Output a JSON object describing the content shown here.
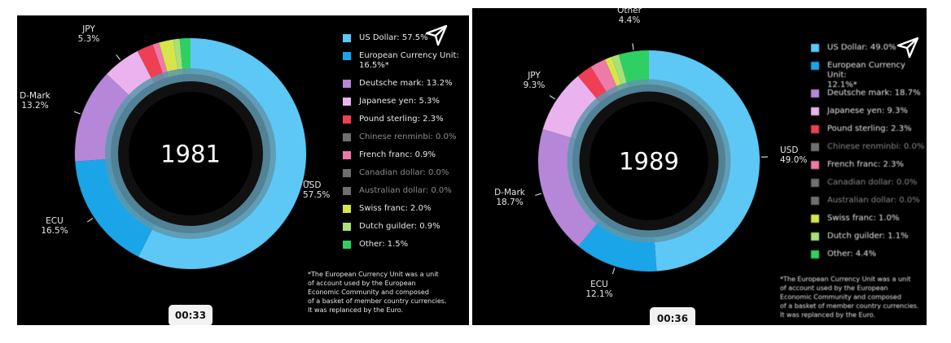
{
  "chart_data": [
    {
      "type": "pie",
      "year": "1981",
      "series": [
        {
          "name": "US Dollar",
          "value": 57.5,
          "color": "#5dc8f5",
          "legend": "US Dollar: 57.5%",
          "dim": false
        },
        {
          "name": "European Currency Unit",
          "value": 16.5,
          "color": "#1aa5e8",
          "legend": "European Currency Unit:\n16.5%*",
          "dim": false
        },
        {
          "name": "Deutsche mark",
          "value": 13.2,
          "color": "#b687d8",
          "legend": "Deutsche mark: 13.2%",
          "dim": false
        },
        {
          "name": "Japanese yen",
          "value": 5.3,
          "color": "#eab3ef",
          "legend": "Japanese yen: 5.3%",
          "dim": false
        },
        {
          "name": "Pound sterling",
          "value": 2.3,
          "color": "#ef3f55",
          "legend": "Pound sterling: 2.3%",
          "dim": false
        },
        {
          "name": "Chinese renminbi",
          "value": 0.0,
          "color": "#6f6f6f",
          "legend": "Chinese renminbi: 0.0%",
          "dim": true
        },
        {
          "name": "French franc",
          "value": 0.9,
          "color": "#ee7aa8",
          "legend": "French franc: 0.9%",
          "dim": false
        },
        {
          "name": "Canadian dollar",
          "value": 0.0,
          "color": "#6f6f6f",
          "legend": "Canadian dollar: 0.0%",
          "dim": true
        },
        {
          "name": "Australian dollar",
          "value": 0.0,
          "color": "#6f6f6f",
          "legend": "Australian dollar: 0.0%",
          "dim": true
        },
        {
          "name": "Swiss franc",
          "value": 2.0,
          "color": "#d6e64a",
          "legend": "Swiss franc: 2.0%",
          "dim": false
        },
        {
          "name": "Dutch guilder",
          "value": 0.9,
          "color": "#a8e07a",
          "legend": "Dutch guilder: 0.9%",
          "dim": false
        },
        {
          "name": "Other",
          "value": 1.5,
          "color": "#2fd063",
          "legend": "Other: 1.5%",
          "dim": false
        }
      ],
      "callouts": [
        {
          "text": "USD\n57.5%",
          "series": "US Dollar"
        },
        {
          "text": "ECU\n16.5%",
          "series": "European Currency Unit"
        },
        {
          "text": "D-Mark\n13.2%",
          "series": "Deutsche mark"
        },
        {
          "text": "JPY\n5.3%",
          "series": "Japanese yen"
        }
      ],
      "footnote": "*The European Currency Unit was a unit\nof account used by the European\nEconomic Community and composed\nof a basket of member country currencies.\nIt was replanced by the Euro.",
      "timer": "00:33"
    },
    {
      "type": "pie",
      "year": "1989",
      "series": [
        {
          "name": "US Dollar",
          "value": 49.0,
          "color": "#5dc8f5",
          "legend": "US Dollar: 49.0%",
          "dim": false
        },
        {
          "name": "European Currency Unit",
          "value": 12.1,
          "color": "#1aa5e8",
          "legend": "European Currency Unit:\n12.1%*",
          "dim": false
        },
        {
          "name": "Deutsche mark",
          "value": 18.7,
          "color": "#b687d8",
          "legend": "Deutsche mark: 18.7%",
          "dim": false
        },
        {
          "name": "Japanese yen",
          "value": 9.3,
          "color": "#eab3ef",
          "legend": "Japanese yen: 9.3%",
          "dim": false
        },
        {
          "name": "Pound sterling",
          "value": 2.3,
          "color": "#ef3f55",
          "legend": "Pound sterling: 2.3%",
          "dim": false
        },
        {
          "name": "Chinese renminbi",
          "value": 0.0,
          "color": "#6f6f6f",
          "legend": "Chinese renminbi: 0.0%",
          "dim": true
        },
        {
          "name": "French franc",
          "value": 2.3,
          "color": "#ee7aa8",
          "legend": "French franc: 2.3%",
          "dim": false
        },
        {
          "name": "Canadian dollar",
          "value": 0.0,
          "color": "#6f6f6f",
          "legend": "Canadian dollar: 0.0%",
          "dim": true
        },
        {
          "name": "Australian dollar",
          "value": 0.0,
          "color": "#6f6f6f",
          "legend": "Australian dollar: 0.0%",
          "dim": true
        },
        {
          "name": "Swiss franc",
          "value": 1.0,
          "color": "#d6e64a",
          "legend": "Swiss franc: 1.0%",
          "dim": false
        },
        {
          "name": "Dutch guilder",
          "value": 1.1,
          "color": "#a8e07a",
          "legend": "Dutch guilder: 1.1%",
          "dim": false
        },
        {
          "name": "Other",
          "value": 4.4,
          "color": "#2fd063",
          "legend": "Other: 4.4%",
          "dim": false
        }
      ],
      "callouts": [
        {
          "text": "USD\n49.0%",
          "series": "US Dollar"
        },
        {
          "text": "ECU\n12.1%",
          "series": "European Currency Unit"
        },
        {
          "text": "D-Mark\n18.7%",
          "series": "Deutsche mark"
        },
        {
          "text": "JPY\n9.3%",
          "series": "Japanese yen"
        },
        {
          "text": "Other\n4.4%",
          "series": "Other"
        }
      ],
      "footnote": "*The European Currency Unit was a unit\nof account used by the European\nEconomic Community and composed\nof a basket of member country currencies.\nIt was replanced by the Euro.",
      "timer": "00:36"
    }
  ],
  "ui": {
    "share_icon": "send-arrow-icon",
    "accent_track": "#5e97ad"
  }
}
